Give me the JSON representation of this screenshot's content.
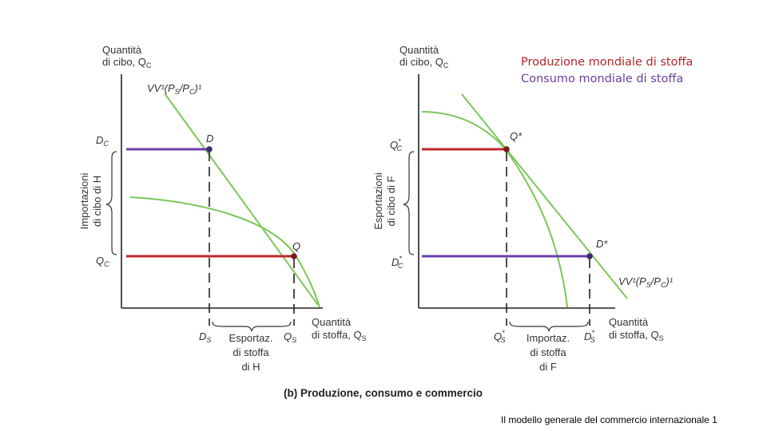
{
  "legend": {
    "production": "Produzione mondiale di stoffa",
    "consumption": "Consumo mondiale di stoffa",
    "production_color": "#b3262a",
    "consumption_color": "#6b3fa0"
  },
  "footer": "Il modello generale del commercio internazionale 1",
  "caption": "(b) Produzione, consumo e commercio",
  "colors": {
    "curve": "#7bc75a",
    "red": "#c0272d",
    "purple": "#6a3fa8",
    "axis": "#222222"
  },
  "left": {
    "y_axis_title_1": "Quantità",
    "y_axis_title_2": "di cibo, Q",
    "y_axis_title_sub": "C",
    "price_line_label": "VV¹(P",
    "price_line_label_end": "/P",
    "price_line_label_close": ")¹",
    "point_D": "D",
    "point_Q": "Q",
    "tick_DC": "D",
    "tick_DC_sub": "C",
    "tick_QC": "Q",
    "tick_QC_sub": "C",
    "brace_1": "Importazioni",
    "brace_2": "di cibo di H",
    "tick_DS": "D",
    "tick_DS_sub": "S",
    "tick_QS": "Q",
    "tick_QS_sub": "S",
    "exports_1": "Esportaz.",
    "exports_2": "di stoffa",
    "exports_3": "di H",
    "x_axis_title_1": "Quantità",
    "x_axis_title_2": "di stoffa, Q",
    "x_axis_title_sub": "S"
  },
  "right": {
    "y_axis_title_1": "Quantità",
    "y_axis_title_2": "di cibo, Q",
    "y_axis_title_sub": "C",
    "point_Q": "Q*",
    "point_D": "D*",
    "tick_QC": "Q",
    "tick_QC_sup": "*",
    "tick_QC_sub": "C",
    "tick_DC": "D",
    "tick_DC_sup": "*",
    "tick_DC_sub": "C",
    "brace_1": "Esportazioni",
    "brace_2": "di cibo di F",
    "tick_QS": "Q",
    "tick_QS_sup": "*",
    "tick_QS_sub": "S",
    "tick_DS": "D",
    "tick_DS_sup": "*",
    "tick_DS_sub": "S",
    "imports_1": "Importaz.",
    "imports_2": "di stoffa",
    "imports_3": "di F",
    "price_line_label": "VV¹(P",
    "price_line_label_end": "/P",
    "price_line_label_close": ")¹",
    "x_axis_title_1": "Quantità",
    "x_axis_title_2": "di stoffa, Q",
    "x_axis_title_sub": "S"
  }
}
